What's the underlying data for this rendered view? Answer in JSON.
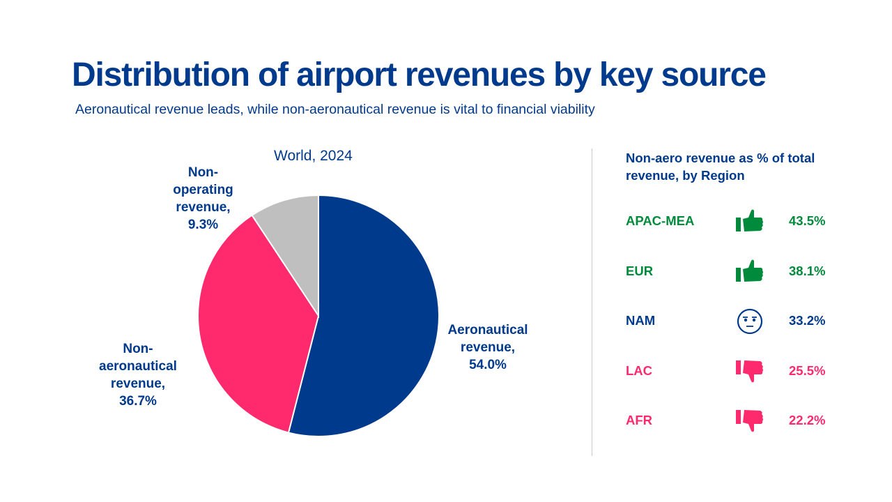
{
  "title": "Distribution of airport revenues by key source",
  "subtitle": "Aeronautical revenue leads, while non-aeronautical revenue is vital to financial viability",
  "colors": {
    "navy": "#003a8c",
    "pink": "#ff2a6d",
    "gray": "#bfbfbf",
    "green": "#008a3c"
  },
  "chart_data": {
    "type": "pie",
    "title": "World, 2024",
    "slices": [
      {
        "label_lines": [
          "Aeronautical",
          "revenue,",
          "54.0%"
        ],
        "name": "Aeronautical revenue",
        "value": 54.0,
        "color": "#003a8c"
      },
      {
        "label_lines": [
          "Non-",
          "aeronautical",
          "revenue,",
          "36.7%"
        ],
        "name": "Non-aeronautical revenue",
        "value": 36.7,
        "color": "#ff2a6d"
      },
      {
        "label_lines": [
          "Non-",
          "operating",
          "revenue,",
          "9.3%"
        ],
        "name": "Non-operating revenue",
        "value": 9.3,
        "color": "#bfbfbf"
      }
    ],
    "start": "12 o'clock",
    "direction": "clockwise"
  },
  "regions": {
    "title": "Non-aero revenue as % of total revenue, by Region",
    "rows": [
      {
        "name": "APAC-MEA",
        "value": "43.5%",
        "icon": "thumbs-up-icon",
        "color": "#008a3c"
      },
      {
        "name": "EUR",
        "value": "38.1%",
        "icon": "thumbs-up-icon",
        "color": "#008a3c"
      },
      {
        "name": "NAM",
        "value": "33.2%",
        "icon": "neutral-face-icon",
        "color": "#003a8c"
      },
      {
        "name": "LAC",
        "value": "25.5%",
        "icon": "thumbs-down-icon",
        "color": "#ff2a6d"
      },
      {
        "name": "AFR",
        "value": "22.2%",
        "icon": "thumbs-down-icon",
        "color": "#ff2a6d"
      }
    ]
  }
}
